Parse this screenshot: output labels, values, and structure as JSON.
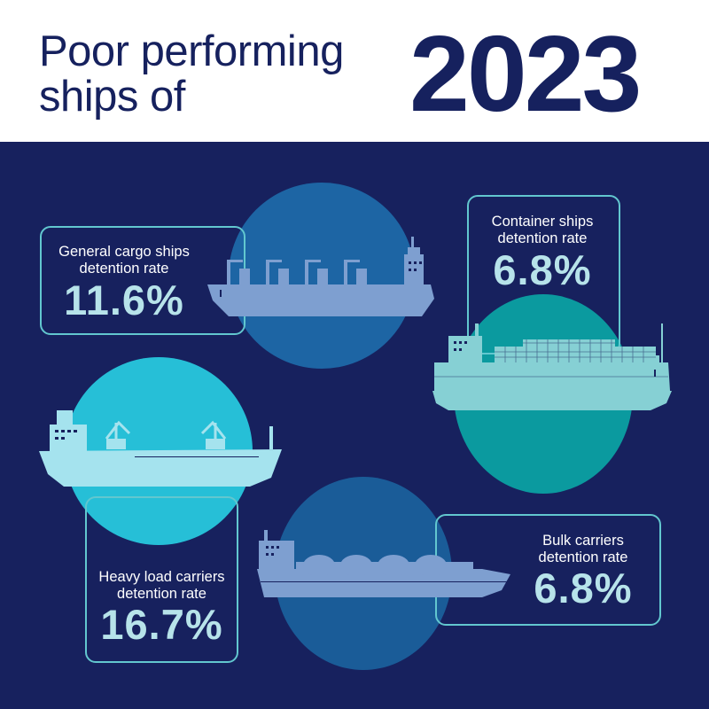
{
  "header": {
    "title_line1": "Poor performing",
    "title_line2": "ships of",
    "year": "2023"
  },
  "cards": [
    {
      "id": "general-cargo",
      "label_line1": "General cargo ships",
      "label_line2": "detention rate",
      "value": "11.6%",
      "circle_color": "#1d65a4",
      "ship_color": "#7e9fd0",
      "ship_icon": "general-cargo-ship-icon"
    },
    {
      "id": "container",
      "label_line1": "Container ships",
      "label_line2": "detention rate",
      "value": "6.8%",
      "circle_color": "#0b9a9f",
      "ship_color": "#86d0d4",
      "ship_icon": "container-ship-icon"
    },
    {
      "id": "heavy-load",
      "label_line1": "Heavy load carriers",
      "label_line2": "detention rate",
      "value": "16.7%",
      "circle_color": "#26bfd7",
      "ship_color": "#a5e3ee",
      "ship_icon": "heavy-load-ship-icon"
    },
    {
      "id": "bulk",
      "label_line1": "Bulk carriers",
      "label_line2": "detention rate",
      "value": "6.8%",
      "circle_color": "#1a5c98",
      "ship_color": "#7e9fd0",
      "ship_icon": "bulk-carrier-ship-icon"
    }
  ],
  "colors": {
    "navy_background": "#17215e",
    "title_navy": "#16215e",
    "box_border": "#62c7cf",
    "value_text": "#b7e3ea"
  }
}
